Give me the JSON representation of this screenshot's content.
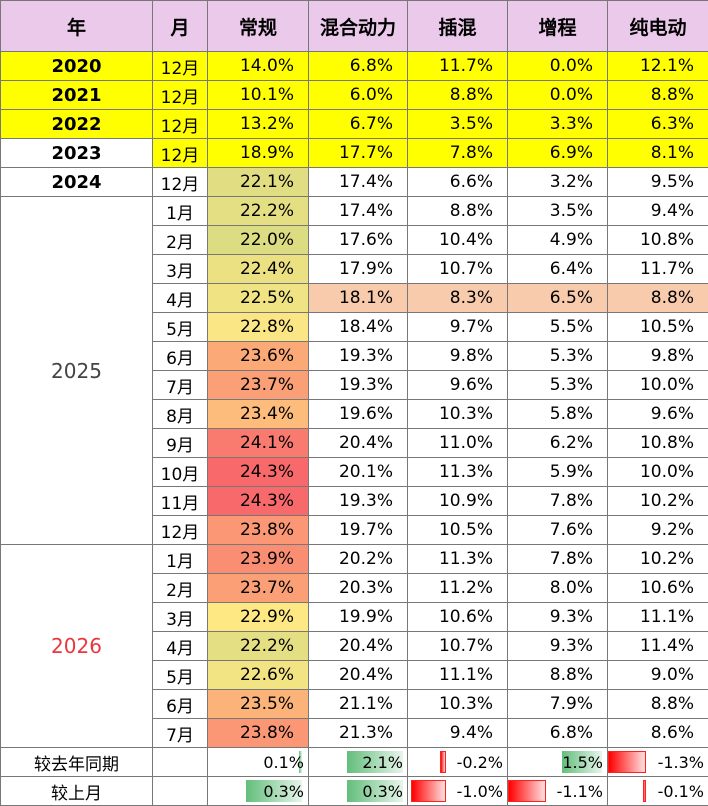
{
  "header": [
    "年",
    "月",
    "常规",
    "混合动力",
    "插混",
    "增程",
    "纯电动"
  ],
  "groups": [
    {
      "year": "2020",
      "rows": [
        {
          "month": "12月",
          "cells": [
            "14.0%",
            "6.8%",
            "11.7%",
            "0.0%",
            "12.1%"
          ]
        }
      ]
    },
    {
      "year": "2021",
      "rows": [
        {
          "month": "12月",
          "cells": [
            "10.1%",
            "6.0%",
            "8.8%",
            "0.0%",
            "8.8%"
          ]
        }
      ]
    },
    {
      "year": "2022",
      "rows": [
        {
          "month": "12月",
          "cells": [
            "13.2%",
            "6.7%",
            "3.5%",
            "3.3%",
            "6.3%"
          ]
        }
      ]
    },
    {
      "year": "2023",
      "rows": [
        {
          "month": "12月",
          "cells": [
            "18.9%",
            "17.7%",
            "7.8%",
            "6.9%",
            "8.1%"
          ]
        }
      ]
    },
    {
      "year": "2024",
      "rows": [
        {
          "month": "12月",
          "cells": [
            "22.1%",
            "17.4%",
            "6.6%",
            "3.2%",
            "9.5%"
          ]
        }
      ]
    },
    {
      "year": "2025",
      "rows": [
        {
          "month": "1月",
          "cells": [
            "22.2%",
            "17.4%",
            "8.8%",
            "3.5%",
            "9.4%"
          ]
        },
        {
          "month": "2月",
          "cells": [
            "22.0%",
            "17.6%",
            "10.4%",
            "4.9%",
            "10.8%"
          ]
        },
        {
          "month": "3月",
          "cells": [
            "22.4%",
            "17.9%",
            "10.7%",
            "6.4%",
            "11.7%"
          ]
        },
        {
          "month": "4月",
          "cells": [
            "22.5%",
            "18.1%",
            "8.3%",
            "6.5%",
            "8.8%"
          ]
        },
        {
          "month": "5月",
          "cells": [
            "22.8%",
            "18.4%",
            "9.7%",
            "5.5%",
            "10.5%"
          ]
        },
        {
          "month": "6月",
          "cells": [
            "23.6%",
            "19.3%",
            "9.8%",
            "5.3%",
            "9.8%"
          ]
        },
        {
          "month": "7月",
          "cells": [
            "23.7%",
            "19.3%",
            "9.6%",
            "5.3%",
            "10.0%"
          ]
        },
        {
          "month": "8月",
          "cells": [
            "23.4%",
            "19.6%",
            "10.3%",
            "5.8%",
            "9.6%"
          ]
        },
        {
          "month": "9月",
          "cells": [
            "24.1%",
            "20.4%",
            "11.0%",
            "6.2%",
            "10.8%"
          ]
        },
        {
          "month": "10月",
          "cells": [
            "24.3%",
            "20.1%",
            "11.3%",
            "5.9%",
            "10.0%"
          ]
        },
        {
          "month": "11月",
          "cells": [
            "24.3%",
            "19.3%",
            "10.9%",
            "7.8%",
            "10.2%"
          ]
        },
        {
          "month": "12月",
          "cells": [
            "23.8%",
            "19.7%",
            "10.5%",
            "7.6%",
            "9.2%"
          ]
        }
      ]
    },
    {
      "year": "2026",
      "rows": [
        {
          "month": "1月",
          "cells": [
            "23.9%",
            "20.2%",
            "11.3%",
            "7.8%",
            "10.2%"
          ]
        },
        {
          "month": "2月",
          "cells": [
            "23.7%",
            "20.3%",
            "11.2%",
            "8.0%",
            "10.6%"
          ]
        },
        {
          "month": "3月",
          "cells": [
            "22.9%",
            "19.9%",
            "10.6%",
            "9.3%",
            "11.1%"
          ]
        },
        {
          "month": "4月",
          "cells": [
            "22.2%",
            "20.4%",
            "10.7%",
            "9.3%",
            "11.4%"
          ]
        },
        {
          "month": "5月",
          "cells": [
            "22.6%",
            "20.4%",
            "11.1%",
            "8.8%",
            "9.0%"
          ]
        },
        {
          "month": "6月",
          "cells": [
            "23.5%",
            "21.1%",
            "10.3%",
            "7.9%",
            "8.8%"
          ]
        },
        {
          "month": "7月",
          "cells": [
            "23.8%",
            "21.3%",
            "9.4%",
            "6.8%",
            "8.6%"
          ]
        }
      ]
    }
  ],
  "comparisons": [
    {
      "label": "较去年同期",
      "cells": [
        {
          "value": 0.1,
          "label": "0.1%"
        },
        {
          "value": 2.1,
          "label": "2.1%"
        },
        {
          "value": -0.2,
          "label": "-0.2%"
        },
        {
          "value": 1.5,
          "label": "1.5%"
        },
        {
          "value": -1.3,
          "label": "-1.3%"
        }
      ]
    },
    {
      "label": "较上月",
      "cells": [
        {
          "value": 0.3,
          "label": "0.3%"
        },
        {
          "value": 0.3,
          "label": "0.3%"
        },
        {
          "value": -1.0,
          "label": "-1.0%"
        },
        {
          "value": -1.1,
          "label": "-1.1%"
        },
        {
          "value": -0.1,
          "label": "-0.1%"
        }
      ]
    }
  ]
}
